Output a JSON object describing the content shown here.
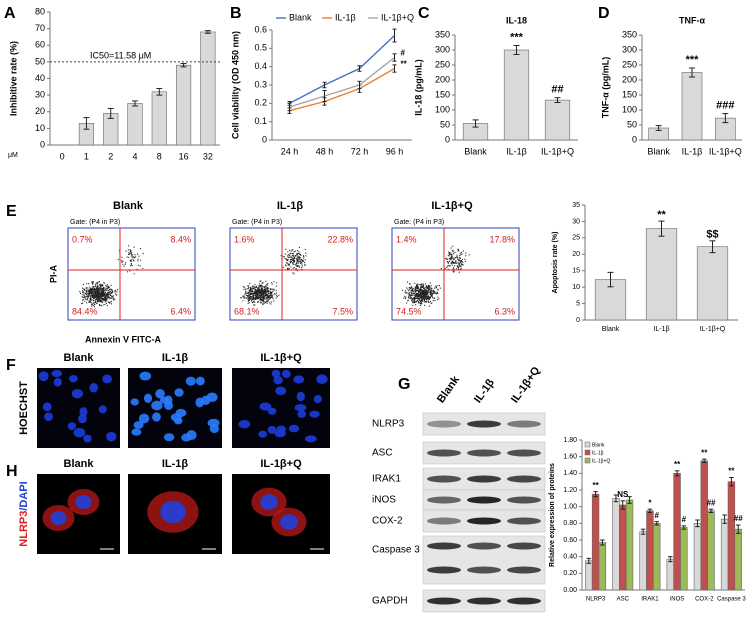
{
  "panel_labels": [
    "A",
    "B",
    "C",
    "D",
    "E",
    "F",
    "G",
    "H"
  ],
  "chart_data": [
    {
      "type": "bar",
      "ylabel": "Inhibitive rate (%)",
      "x_unit": "μM",
      "categories": [
        "0",
        "1",
        "2",
        "4",
        "8",
        "16",
        "32"
      ],
      "values": [
        0,
        13,
        19,
        25,
        32,
        48,
        68
      ],
      "errors": [
        0,
        3.5,
        3,
        1.5,
        2,
        1,
        0.8
      ],
      "color": "#d9d9d9",
      "ylim": [
        0,
        80
      ],
      "yticks": [
        0,
        10,
        20,
        30,
        40,
        50,
        60,
        70,
        80
      ],
      "reference_line": {
        "value": 50,
        "label": "IC50=11.58 μM"
      }
    },
    {
      "type": "line",
      "ylabel": "Cell viability (OD 450 nm)",
      "categories": [
        "24 h",
        "48 h",
        "72 h",
        "96 h"
      ],
      "series": [
        {
          "name": "Blank",
          "color": "#4472c4",
          "values": [
            0.2,
            0.3,
            0.39,
            0.57
          ],
          "errors": [
            0.01,
            0.015,
            0.015,
            0.035
          ]
        },
        {
          "name": "IL-1β",
          "color": "#ed7d31",
          "values": [
            0.16,
            0.21,
            0.28,
            0.39
          ],
          "errors": [
            0.015,
            0.02,
            0.02,
            0.02
          ],
          "end_annotation": "**"
        },
        {
          "name": "IL-1β+Q",
          "color": "#a5a5a5",
          "values": [
            0.18,
            0.24,
            0.3,
            0.45
          ],
          "errors": [
            0.02,
            0.03,
            0.02,
            0.02
          ],
          "end_annotation": "#"
        }
      ],
      "ylim": [
        0,
        0.6
      ],
      "yticks": [
        0,
        0.1,
        0.2,
        0.3,
        0.4,
        0.5,
        0.6
      ]
    },
    {
      "type": "bar",
      "title": "IL-18",
      "ylabel": "IL-18 (pg/mL)",
      "categories": [
        "Blank",
        "IL-1β",
        "IL-1β+Q"
      ],
      "values": [
        55,
        300,
        133
      ],
      "errors": [
        12,
        15,
        8
      ],
      "annotations": [
        null,
        "***",
        "##"
      ],
      "color": "#d9d9d9",
      "ylim": [
        0,
        350
      ],
      "yticks": [
        0,
        50,
        100,
        150,
        200,
        250,
        300,
        350
      ]
    },
    {
      "type": "bar",
      "title": "TNF-α",
      "ylabel": "TNF-α (pg/mL)",
      "categories": [
        "Blank",
        "IL-1β",
        "IL-1β+Q"
      ],
      "values": [
        40,
        225,
        73
      ],
      "errors": [
        8,
        15,
        15
      ],
      "annotations": [
        null,
        "***",
        "###"
      ],
      "color": "#d9d9d9",
      "ylim": [
        0,
        350
      ],
      "yticks": [
        0,
        50,
        100,
        150,
        200,
        250,
        300,
        350
      ]
    },
    {
      "type": "bar",
      "ylabel": "Apoptosis rate (%)",
      "categories": [
        "Blank",
        "IL-1β",
        "IL-1β+Q"
      ],
      "values": [
        12.3,
        27.8,
        22.3
      ],
      "errors": [
        2.2,
        2.3,
        1.8
      ],
      "annotations": [
        null,
        "**",
        "$$"
      ],
      "color": "#d9d9d9",
      "ylim": [
        0,
        35
      ],
      "yticks": [
        0,
        5,
        10,
        15,
        20,
        25,
        30,
        35
      ]
    },
    {
      "type": "bar",
      "ylabel": "Relative expression of proteins",
      "categories": [
        "NLRP3",
        "ASC",
        "IRAK1",
        "iNOS",
        "COX-2",
        "Caspase 3"
      ],
      "series": [
        {
          "name": "Blank",
          "color": "#d9d9d9",
          "values": [
            0.35,
            1.1,
            0.7,
            0.37,
            0.8,
            0.85
          ],
          "errors": [
            0.03,
            0.04,
            0.03,
            0.03,
            0.04,
            0.05
          ]
        },
        {
          "name": "IL-1β",
          "color": "#c0504d",
          "values": [
            1.15,
            1.02,
            0.95,
            1.4,
            1.55,
            1.3
          ],
          "errors": [
            0.03,
            0.05,
            0.02,
            0.03,
            0.02,
            0.05
          ],
          "annotations": [
            "**",
            "NS",
            "*",
            "**",
            "**",
            "**"
          ]
        },
        {
          "name": "IL-1β+Q",
          "color": "#9bbb59",
          "values": [
            0.57,
            1.08,
            0.8,
            0.75,
            0.95,
            0.73
          ],
          "errors": [
            0.03,
            0.04,
            0.02,
            0.02,
            0.02,
            0.05
          ],
          "annotations": [
            null,
            null,
            "#",
            "#",
            "##",
            "##"
          ]
        }
      ],
      "ylim": [
        0,
        1.8
      ],
      "yticks": [
        {
          "value": 0,
          "label": "0.00"
        },
        {
          "value": 0.2,
          "label": "0.20"
        },
        {
          "value": 0.4,
          "label": "0.40"
        },
        {
          "value": 0.6,
          "label": "0.60"
        },
        {
          "value": 0.8,
          "label": "0.80"
        },
        {
          "value": 1,
          "label": "1.00"
        },
        {
          "value": 1.2,
          "label": "1.20"
        },
        {
          "value": 1.4,
          "label": "1.40"
        },
        {
          "value": 1.6,
          "label": "1.60"
        },
        {
          "value": 1.8,
          "label": "1.80"
        }
      ]
    }
  ],
  "flow_cytometry": {
    "gate": "Gate: (P4 in P3)",
    "x_label": "Annexin V FITC-A",
    "y_label": "PI-A",
    "plots": [
      {
        "title": "Blank",
        "quadrants": [
          "0.7%",
          "8.4%",
          "84.4%",
          "6.4%"
        ]
      },
      {
        "title": "IL-1β",
        "quadrants": [
          "1.6%",
          "22.8%",
          "68.1%",
          "7.5%"
        ]
      },
      {
        "title": "IL-1β+Q",
        "quadrants": [
          "1.4%",
          "17.8%",
          "74.5%",
          "6.3%"
        ]
      }
    ]
  },
  "microscopy": {
    "groups": [
      "Blank",
      "IL-1β",
      "IL-1β+Q"
    ],
    "stain_f": "HOECHST",
    "stain_h_red": "NLRP3",
    "stain_h_blue": "/DAPI"
  },
  "blot": {
    "samples": [
      "Blank",
      "IL-1β",
      "IL-1β+Q"
    ],
    "proteins": [
      "NLRP3",
      "ASC",
      "IRAK1",
      "iNOS",
      "COX-2",
      "Caspase 3",
      "GAPDH"
    ]
  }
}
